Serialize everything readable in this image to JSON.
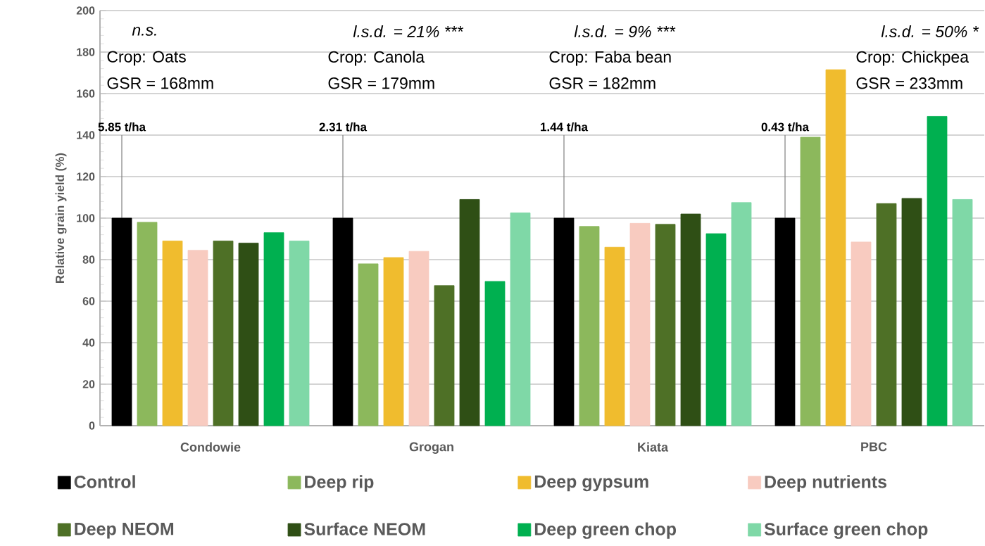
{
  "chart_data": {
    "type": "bar",
    "ylabel": "Relative grain yield (%)",
    "categories": [
      "Condowie",
      "Grogan",
      "Kiata",
      "PBC"
    ],
    "series": [
      {
        "name": "Control",
        "color": "#000000",
        "values": [
          100,
          100,
          100,
          100
        ]
      },
      {
        "name": "Deep rip",
        "color": "#8cb85c",
        "values": [
          98,
          78,
          96,
          139
        ]
      },
      {
        "name": "Deep gypsum",
        "color": "#f0bc2e",
        "values": [
          89,
          81,
          86,
          171.5
        ]
      },
      {
        "name": "Deep nutrients",
        "color": "#f8cbc0",
        "values": [
          84.5,
          84,
          97.5,
          88.5
        ]
      },
      {
        "name": "Deep NEOM",
        "color": "#4e7026",
        "values": [
          89,
          67.5,
          97,
          107
        ]
      },
      {
        "name": "Surface NEOM",
        "color": "#2f4f15",
        "values": [
          88,
          109,
          102,
          109.5
        ]
      },
      {
        "name": "Deep green chop",
        "color": "#00b050",
        "values": [
          93,
          69.5,
          92.5,
          149
        ]
      },
      {
        "name": "Surface green chop",
        "color": "#7fd8a7",
        "values": [
          89,
          102.5,
          107.5,
          109
        ]
      }
    ],
    "ylim": [
      0,
      200
    ],
    "yticks": [
      0,
      20,
      40,
      60,
      80,
      100,
      120,
      140,
      160,
      180,
      200
    ],
    "grid": "y",
    "legend": "bottom",
    "annotations": [
      "n.s.",
      "Crop: Oats",
      "GSR = 168mm",
      {
        "text": "5.85 t/ha",
        "y": 100
      },
      "l.s.d. = 21% ***",
      "Crop: Canola",
      "GSR = 179mm",
      {
        "text": "2.31 t/ha",
        "y": 100
      },
      "l.s.d. = 9% ***",
      "Crop: Faba bean",
      "GSR = 182mm",
      {
        "text": "1.44 t/ha",
        "y": 100
      },
      "l.s.d. = 50% *",
      "Crop: Chickpea",
      "GSR = 233mm",
      {
        "text": "0.43 t/ha",
        "y": 100
      }
    ]
  }
}
